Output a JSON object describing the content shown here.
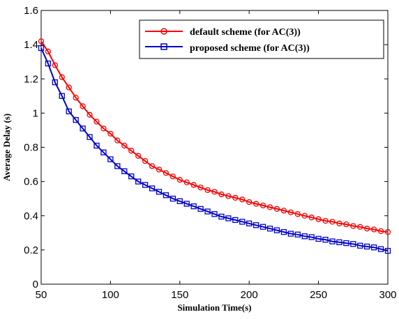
{
  "chart_data": {
    "type": "line",
    "xlabel": "Simulation Time(s)",
    "ylabel": "Average Delay (s)",
    "xlim": [
      50,
      300
    ],
    "ylim": [
      0,
      1.6
    ],
    "x_ticks": [
      50,
      100,
      150,
      200,
      250,
      300
    ],
    "y_ticks": [
      0,
      0.2,
      0.4,
      0.6,
      0.8,
      1,
      1.2,
      1.4,
      1.6
    ],
    "grid": false,
    "legend_position": "top-right",
    "x": [
      50,
      55,
      60,
      65,
      70,
      75,
      80,
      85,
      90,
      95,
      100,
      105,
      110,
      115,
      120,
      125,
      130,
      135,
      140,
      145,
      150,
      155,
      160,
      165,
      170,
      175,
      180,
      185,
      190,
      195,
      200,
      205,
      210,
      215,
      220,
      225,
      230,
      235,
      240,
      245,
      250,
      255,
      260,
      265,
      270,
      275,
      280,
      285,
      290,
      295,
      300
    ],
    "series": [
      {
        "name": "default scheme (for AC(3))",
        "color": "#ff0000",
        "marker": "circle",
        "values": [
          1.42,
          1.36,
          1.28,
          1.21,
          1.15,
          1.09,
          1.04,
          0.99,
          0.95,
          0.91,
          0.88,
          0.84,
          0.81,
          0.78,
          0.75,
          0.72,
          0.69,
          0.67,
          0.65,
          0.63,
          0.61,
          0.595,
          0.58,
          0.565,
          0.55,
          0.54,
          0.525,
          0.515,
          0.505,
          0.495,
          0.48,
          0.47,
          0.46,
          0.45,
          0.44,
          0.43,
          0.42,
          0.41,
          0.4,
          0.39,
          0.38,
          0.37,
          0.365,
          0.355,
          0.35,
          0.34,
          0.335,
          0.325,
          0.32,
          0.31,
          0.305
        ]
      },
      {
        "name": "proposed scheme (for AC(3))",
        "color": "#0000cc",
        "marker": "square",
        "values": [
          1.38,
          1.29,
          1.18,
          1.1,
          1.01,
          0.96,
          0.91,
          0.86,
          0.81,
          0.77,
          0.73,
          0.69,
          0.66,
          0.63,
          0.6,
          0.58,
          0.56,
          0.54,
          0.52,
          0.5,
          0.485,
          0.47,
          0.455,
          0.44,
          0.425,
          0.41,
          0.395,
          0.385,
          0.375,
          0.365,
          0.355,
          0.345,
          0.335,
          0.325,
          0.315,
          0.305,
          0.295,
          0.29,
          0.28,
          0.275,
          0.265,
          0.26,
          0.25,
          0.245,
          0.24,
          0.235,
          0.225,
          0.22,
          0.215,
          0.205,
          0.195
        ]
      }
    ]
  }
}
